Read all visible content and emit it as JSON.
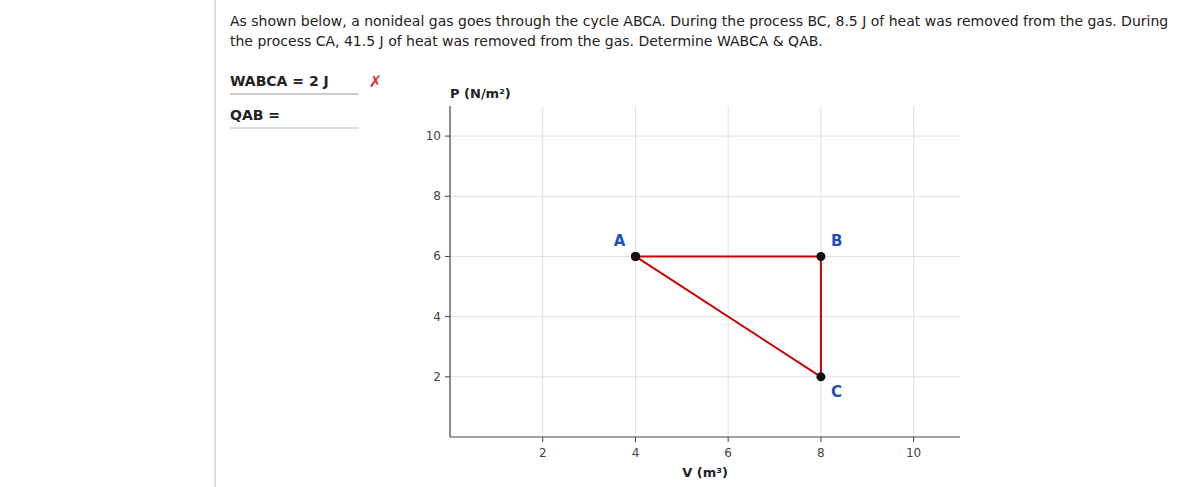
{
  "chart_data": {
    "type": "line",
    "title": "As shown below, a nonideal gas goes through the cycle ABCA. During the process BC, 8.5 J of heat was removed from the gas. During the process CA, 41.5 J of heat was removed from the gas. Determine WABCA & QAB.",
    "annotations": [
      "WABCA = 2 J",
      "✗",
      "QAB ="
    ],
    "x_label": "V (m³)",
    "y_label": "P (N/m²)",
    "x": [
      4,
      8,
      8,
      4
    ],
    "values": [
      6,
      6,
      2,
      6
    ],
    "labels": [
      "A",
      "B",
      "C",
      null
    ],
    "color": "#CC0000",
    "marker": "circle",
    "xlim": [
      0,
      11
    ],
    "ylim": [
      0,
      11
    ],
    "xticks": [
      2,
      4,
      6,
      8,
      10
    ],
    "yticks": [
      2,
      4,
      6,
      8,
      10
    ],
    "grid": true
  }
}
